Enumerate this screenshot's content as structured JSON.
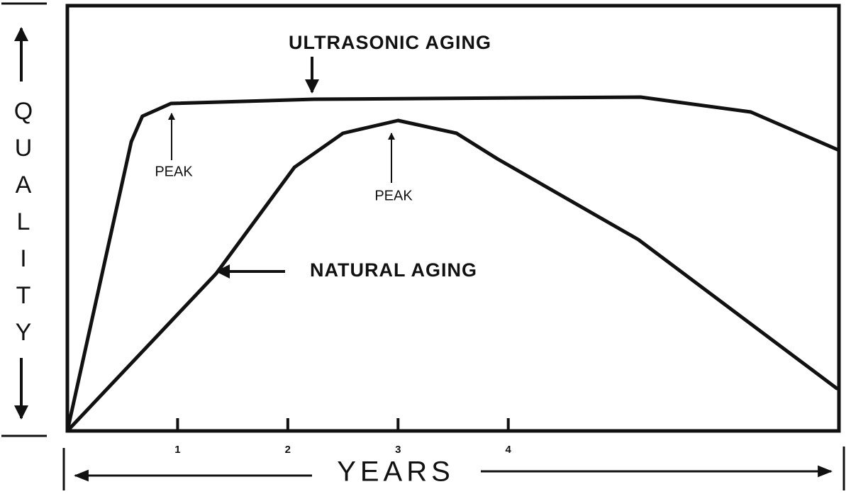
{
  "chart_data": {
    "type": "line",
    "xlabel": "YEARS",
    "ylabel": "QUALITY",
    "xlim": [
      0,
      7
    ],
    "ylim": [
      0,
      100
    ],
    "xticks": [
      1,
      2,
      3,
      4
    ],
    "annotations": [
      "PEAK",
      "PEAK"
    ],
    "series": [
      {
        "name": "ULTRASONIC AGING",
        "color": "#111111",
        "x": [
          0,
          0.58,
          0.68,
          0.94,
          2.24,
          5.2,
          6.2,
          7.0
        ],
        "values": [
          0,
          68,
          74,
          77,
          78,
          78.5,
          75,
          66
        ]
      },
      {
        "name": "NATURAL AGING",
        "color": "#111111",
        "x": [
          0,
          1.35,
          2.06,
          2.5,
          3.0,
          3.53,
          3.9,
          5.18,
          6.98
        ],
        "values": [
          0,
          37,
          62,
          70,
          73,
          70,
          64,
          45,
          10
        ]
      }
    ]
  }
}
